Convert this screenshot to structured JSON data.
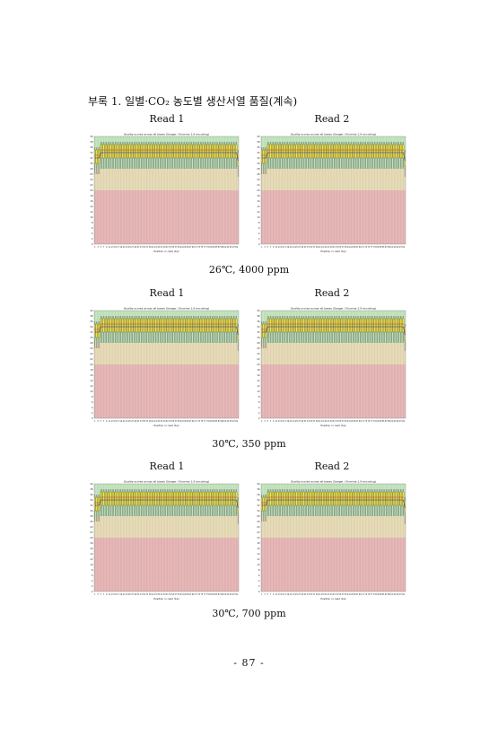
{
  "heading": "부록 1. 일별·CO₂ 농도별 생산서열 품질(계속)",
  "page_number": "- 87 -",
  "panels": [
    {
      "caption": "26℃, 4000 ppm",
      "read1_label": "Read 1",
      "read2_label": "Read 2"
    },
    {
      "caption": "30℃, 350 ppm",
      "read1_label": "Read 1",
      "read2_label": "Read 2"
    },
    {
      "caption": "30℃, 700 ppm",
      "read1_label": "Read 1",
      "read2_label": "Read 2"
    }
  ],
  "colors": {
    "good_zone": "#c4e6c0",
    "ok_zone": "#e8dcb8",
    "poor_zone": "#e8b8b8",
    "box": "#f5e642",
    "median": "#d40000",
    "mean_line": "#2020c0"
  },
  "chart_data": [
    {
      "type": "box",
      "title": "Quality scores across all bases (Sanger / Illumina 1.9 encoding)",
      "xlabel": "Position in read (bp)",
      "ylim": [
        0,
        40
      ],
      "zones": [
        [
          28,
          40
        ],
        [
          20,
          28
        ],
        [
          0,
          20
        ]
      ],
      "mean": [
        32,
        32,
        32,
        32,
        34,
        34,
        34,
        34,
        34,
        34,
        34,
        34,
        34,
        34,
        34,
        34,
        34,
        34,
        34,
        34,
        34,
        34,
        34,
        34,
        34,
        34,
        34,
        34,
        34,
        34,
        34,
        34,
        34,
        34,
        34,
        34,
        34,
        34,
        34,
        34,
        34,
        34,
        34,
        34,
        34,
        34,
        34,
        34,
        34,
        34,
        34,
        34,
        34,
        34,
        34,
        34,
        34,
        34,
        34,
        34,
        34,
        34,
        34,
        34,
        34,
        34,
        34,
        34,
        34,
        34,
        34,
        34,
        34,
        34,
        34,
        34,
        34,
        34,
        34,
        34,
        34,
        34,
        34,
        34,
        34,
        34,
        34,
        34,
        34,
        34,
        34,
        34,
        34,
        34,
        34,
        34,
        34,
        34,
        34,
        31
      ]
    },
    {
      "type": "box",
      "title": "Quality scores across all bases (Sanger / Illumina 1.9 encoding)",
      "xlabel": "Position in read (bp)",
      "ylim": [
        0,
        40
      ],
      "zones": [
        [
          28,
          40
        ],
        [
          20,
          28
        ],
        [
          0,
          20
        ]
      ],
      "mean": [
        32,
        32,
        32,
        32,
        34,
        34,
        34,
        34,
        34,
        34,
        34,
        34,
        34,
        34,
        34,
        34,
        34,
        34,
        34,
        34,
        34,
        34,
        34,
        34,
        34,
        34,
        34,
        34,
        34,
        34,
        34,
        34,
        34,
        34,
        34,
        34,
        34,
        34,
        34,
        34,
        34,
        34,
        34,
        34,
        34,
        34,
        34,
        34,
        34,
        34,
        34,
        34,
        34,
        34,
        34,
        34,
        34,
        34,
        34,
        34,
        34,
        34,
        34,
        34,
        34,
        34,
        34,
        34,
        34,
        34,
        34,
        34,
        34,
        34,
        34,
        34,
        34,
        34,
        34,
        34,
        34,
        34,
        34,
        34,
        34,
        34,
        34,
        34,
        34,
        34,
        34,
        34,
        34,
        34,
        34,
        34,
        34,
        34,
        34,
        31
      ]
    },
    {
      "type": "box",
      "title": "Quality scores across all bases (Sanger / Illumina 1.9 encoding)",
      "xlabel": "Position in read (bp)",
      "ylim": [
        0,
        40
      ],
      "zones": [
        [
          28,
          40
        ],
        [
          20,
          28
        ],
        [
          0,
          20
        ]
      ],
      "mean": [
        32,
        32,
        32,
        32,
        34,
        34,
        34,
        34,
        34,
        34,
        34,
        34,
        34,
        34,
        34,
        34,
        34,
        34,
        34,
        34,
        34,
        34,
        34,
        34,
        34,
        34,
        34,
        34,
        34,
        34,
        34,
        34,
        34,
        34,
        34,
        34,
        34,
        34,
        34,
        34,
        34,
        34,
        34,
        34,
        34,
        34,
        34,
        34,
        34,
        34,
        34,
        34,
        34,
        34,
        34,
        34,
        34,
        34,
        34,
        34,
        34,
        34,
        34,
        34,
        34,
        34,
        34,
        34,
        34,
        34,
        34,
        34,
        34,
        34,
        34,
        34,
        34,
        34,
        34,
        34,
        34,
        34,
        34,
        34,
        34,
        34,
        34,
        34,
        34,
        34,
        34,
        34,
        34,
        34,
        34,
        34,
        34,
        34,
        34,
        31
      ]
    },
    {
      "type": "box",
      "title": "Quality scores across all bases (Sanger / Illumina 1.9 encoding)",
      "xlabel": "Position in read (bp)",
      "ylim": [
        0,
        40
      ],
      "zones": [
        [
          28,
          40
        ],
        [
          20,
          28
        ],
        [
          0,
          20
        ]
      ],
      "mean": [
        32,
        32,
        32,
        32,
        34,
        34,
        34,
        34,
        34,
        34,
        34,
        34,
        34,
        34,
        34,
        34,
        34,
        34,
        34,
        34,
        34,
        34,
        34,
        34,
        34,
        34,
        34,
        34,
        34,
        34,
        34,
        34,
        34,
        34,
        34,
        34,
        34,
        34,
        34,
        34,
        34,
        34,
        34,
        34,
        34,
        34,
        34,
        34,
        34,
        34,
        34,
        34,
        34,
        34,
        34,
        34,
        34,
        34,
        34,
        34,
        34,
        34,
        34,
        34,
        34,
        34,
        34,
        34,
        34,
        34,
        34,
        34,
        34,
        34,
        34,
        34,
        34,
        34,
        34,
        34,
        34,
        34,
        34,
        34,
        34,
        34,
        34,
        34,
        34,
        34,
        34,
        34,
        34,
        34,
        34,
        34,
        34,
        34,
        34,
        31
      ]
    },
    {
      "type": "box",
      "title": "Quality scores across all bases (Sanger / Illumina 1.9 encoding)",
      "xlabel": "Position in read (bp)",
      "ylim": [
        0,
        40
      ],
      "zones": [
        [
          28,
          40
        ],
        [
          20,
          28
        ],
        [
          0,
          20
        ]
      ],
      "mean": [
        32,
        32,
        32,
        32,
        34,
        34,
        34,
        34,
        34,
        34,
        34,
        34,
        34,
        34,
        34,
        34,
        34,
        34,
        34,
        34,
        34,
        34,
        34,
        34,
        34,
        34,
        34,
        34,
        34,
        34,
        34,
        34,
        34,
        34,
        34,
        34,
        34,
        34,
        34,
        34,
        34,
        34,
        34,
        34,
        34,
        34,
        34,
        34,
        34,
        34,
        34,
        34,
        34,
        34,
        34,
        34,
        34,
        34,
        34,
        34,
        34,
        34,
        34,
        34,
        34,
        34,
        34,
        34,
        34,
        34,
        34,
        34,
        34,
        34,
        34,
        34,
        34,
        34,
        34,
        34,
        34,
        34,
        34,
        34,
        34,
        34,
        34,
        34,
        34,
        34,
        34,
        34,
        34,
        34,
        34,
        34,
        34,
        34,
        34,
        31
      ]
    },
    {
      "type": "box",
      "title": "Quality scores across all bases (Sanger / Illumina 1.9 encoding)",
      "xlabel": "Position in read (bp)",
      "ylim": [
        0,
        40
      ],
      "zones": [
        [
          28,
          40
        ],
        [
          20,
          28
        ],
        [
          0,
          20
        ]
      ],
      "mean": [
        32,
        32,
        32,
        32,
        34,
        34,
        34,
        34,
        34,
        34,
        34,
        34,
        34,
        34,
        34,
        34,
        34,
        34,
        34,
        34,
        34,
        34,
        34,
        34,
        34,
        34,
        34,
        34,
        34,
        34,
        34,
        34,
        34,
        34,
        34,
        34,
        34,
        34,
        34,
        34,
        34,
        34,
        34,
        34,
        34,
        34,
        34,
        34,
        34,
        34,
        34,
        34,
        34,
        34,
        34,
        34,
        34,
        34,
        34,
        34,
        34,
        34,
        34,
        34,
        34,
        34,
        34,
        34,
        34,
        34,
        34,
        34,
        34,
        34,
        34,
        34,
        34,
        34,
        34,
        34,
        34,
        34,
        34,
        34,
        34,
        34,
        34,
        34,
        34,
        34,
        34,
        34,
        34,
        34,
        34,
        34,
        34,
        34,
        34,
        31
      ]
    }
  ]
}
